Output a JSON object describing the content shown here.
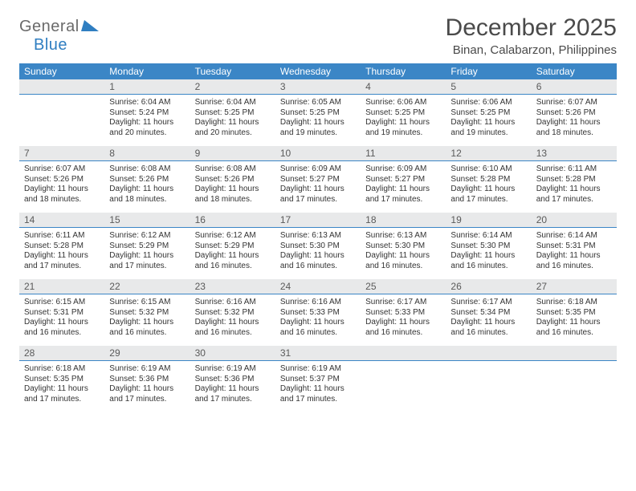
{
  "logo": {
    "word1": "General",
    "word2": "Blue"
  },
  "title": "December 2025",
  "location": "Binan, Calabarzon, Philippines",
  "colors": {
    "header_bar": "#3b86c6",
    "daynum_bg": "#e8e9ea",
    "rule": "#3b86c6",
    "logo_gray": "#6a6a6a",
    "logo_blue": "#2f7ec1",
    "text": "#333333",
    "title_text": "#4a4a4a",
    "bg": "#ffffff"
  },
  "dow": [
    "Sunday",
    "Monday",
    "Tuesday",
    "Wednesday",
    "Thursday",
    "Friday",
    "Saturday"
  ],
  "weeks": [
    [
      null,
      {
        "n": "1",
        "sr": "Sunrise: 6:04 AM",
        "ss": "Sunset: 5:24 PM",
        "dl": "Daylight: 11 hours and 20 minutes."
      },
      {
        "n": "2",
        "sr": "Sunrise: 6:04 AM",
        "ss": "Sunset: 5:25 PM",
        "dl": "Daylight: 11 hours and 20 minutes."
      },
      {
        "n": "3",
        "sr": "Sunrise: 6:05 AM",
        "ss": "Sunset: 5:25 PM",
        "dl": "Daylight: 11 hours and 19 minutes."
      },
      {
        "n": "4",
        "sr": "Sunrise: 6:06 AM",
        "ss": "Sunset: 5:25 PM",
        "dl": "Daylight: 11 hours and 19 minutes."
      },
      {
        "n": "5",
        "sr": "Sunrise: 6:06 AM",
        "ss": "Sunset: 5:25 PM",
        "dl": "Daylight: 11 hours and 19 minutes."
      },
      {
        "n": "6",
        "sr": "Sunrise: 6:07 AM",
        "ss": "Sunset: 5:26 PM",
        "dl": "Daylight: 11 hours and 18 minutes."
      }
    ],
    [
      {
        "n": "7",
        "sr": "Sunrise: 6:07 AM",
        "ss": "Sunset: 5:26 PM",
        "dl": "Daylight: 11 hours and 18 minutes."
      },
      {
        "n": "8",
        "sr": "Sunrise: 6:08 AM",
        "ss": "Sunset: 5:26 PM",
        "dl": "Daylight: 11 hours and 18 minutes."
      },
      {
        "n": "9",
        "sr": "Sunrise: 6:08 AM",
        "ss": "Sunset: 5:26 PM",
        "dl": "Daylight: 11 hours and 18 minutes."
      },
      {
        "n": "10",
        "sr": "Sunrise: 6:09 AM",
        "ss": "Sunset: 5:27 PM",
        "dl": "Daylight: 11 hours and 17 minutes."
      },
      {
        "n": "11",
        "sr": "Sunrise: 6:09 AM",
        "ss": "Sunset: 5:27 PM",
        "dl": "Daylight: 11 hours and 17 minutes."
      },
      {
        "n": "12",
        "sr": "Sunrise: 6:10 AM",
        "ss": "Sunset: 5:28 PM",
        "dl": "Daylight: 11 hours and 17 minutes."
      },
      {
        "n": "13",
        "sr": "Sunrise: 6:11 AM",
        "ss": "Sunset: 5:28 PM",
        "dl": "Daylight: 11 hours and 17 minutes."
      }
    ],
    [
      {
        "n": "14",
        "sr": "Sunrise: 6:11 AM",
        "ss": "Sunset: 5:28 PM",
        "dl": "Daylight: 11 hours and 17 minutes."
      },
      {
        "n": "15",
        "sr": "Sunrise: 6:12 AM",
        "ss": "Sunset: 5:29 PM",
        "dl": "Daylight: 11 hours and 17 minutes."
      },
      {
        "n": "16",
        "sr": "Sunrise: 6:12 AM",
        "ss": "Sunset: 5:29 PM",
        "dl": "Daylight: 11 hours and 16 minutes."
      },
      {
        "n": "17",
        "sr": "Sunrise: 6:13 AM",
        "ss": "Sunset: 5:30 PM",
        "dl": "Daylight: 11 hours and 16 minutes."
      },
      {
        "n": "18",
        "sr": "Sunrise: 6:13 AM",
        "ss": "Sunset: 5:30 PM",
        "dl": "Daylight: 11 hours and 16 minutes."
      },
      {
        "n": "19",
        "sr": "Sunrise: 6:14 AM",
        "ss": "Sunset: 5:30 PM",
        "dl": "Daylight: 11 hours and 16 minutes."
      },
      {
        "n": "20",
        "sr": "Sunrise: 6:14 AM",
        "ss": "Sunset: 5:31 PM",
        "dl": "Daylight: 11 hours and 16 minutes."
      }
    ],
    [
      {
        "n": "21",
        "sr": "Sunrise: 6:15 AM",
        "ss": "Sunset: 5:31 PM",
        "dl": "Daylight: 11 hours and 16 minutes."
      },
      {
        "n": "22",
        "sr": "Sunrise: 6:15 AM",
        "ss": "Sunset: 5:32 PM",
        "dl": "Daylight: 11 hours and 16 minutes."
      },
      {
        "n": "23",
        "sr": "Sunrise: 6:16 AM",
        "ss": "Sunset: 5:32 PM",
        "dl": "Daylight: 11 hours and 16 minutes."
      },
      {
        "n": "24",
        "sr": "Sunrise: 6:16 AM",
        "ss": "Sunset: 5:33 PM",
        "dl": "Daylight: 11 hours and 16 minutes."
      },
      {
        "n": "25",
        "sr": "Sunrise: 6:17 AM",
        "ss": "Sunset: 5:33 PM",
        "dl": "Daylight: 11 hours and 16 minutes."
      },
      {
        "n": "26",
        "sr": "Sunrise: 6:17 AM",
        "ss": "Sunset: 5:34 PM",
        "dl": "Daylight: 11 hours and 16 minutes."
      },
      {
        "n": "27",
        "sr": "Sunrise: 6:18 AM",
        "ss": "Sunset: 5:35 PM",
        "dl": "Daylight: 11 hours and 16 minutes."
      }
    ],
    [
      {
        "n": "28",
        "sr": "Sunrise: 6:18 AM",
        "ss": "Sunset: 5:35 PM",
        "dl": "Daylight: 11 hours and 17 minutes."
      },
      {
        "n": "29",
        "sr": "Sunrise: 6:19 AM",
        "ss": "Sunset: 5:36 PM",
        "dl": "Daylight: 11 hours and 17 minutes."
      },
      {
        "n": "30",
        "sr": "Sunrise: 6:19 AM",
        "ss": "Sunset: 5:36 PM",
        "dl": "Daylight: 11 hours and 17 minutes."
      },
      {
        "n": "31",
        "sr": "Sunrise: 6:19 AM",
        "ss": "Sunset: 5:37 PM",
        "dl": "Daylight: 11 hours and 17 minutes."
      },
      null,
      null,
      null
    ]
  ]
}
